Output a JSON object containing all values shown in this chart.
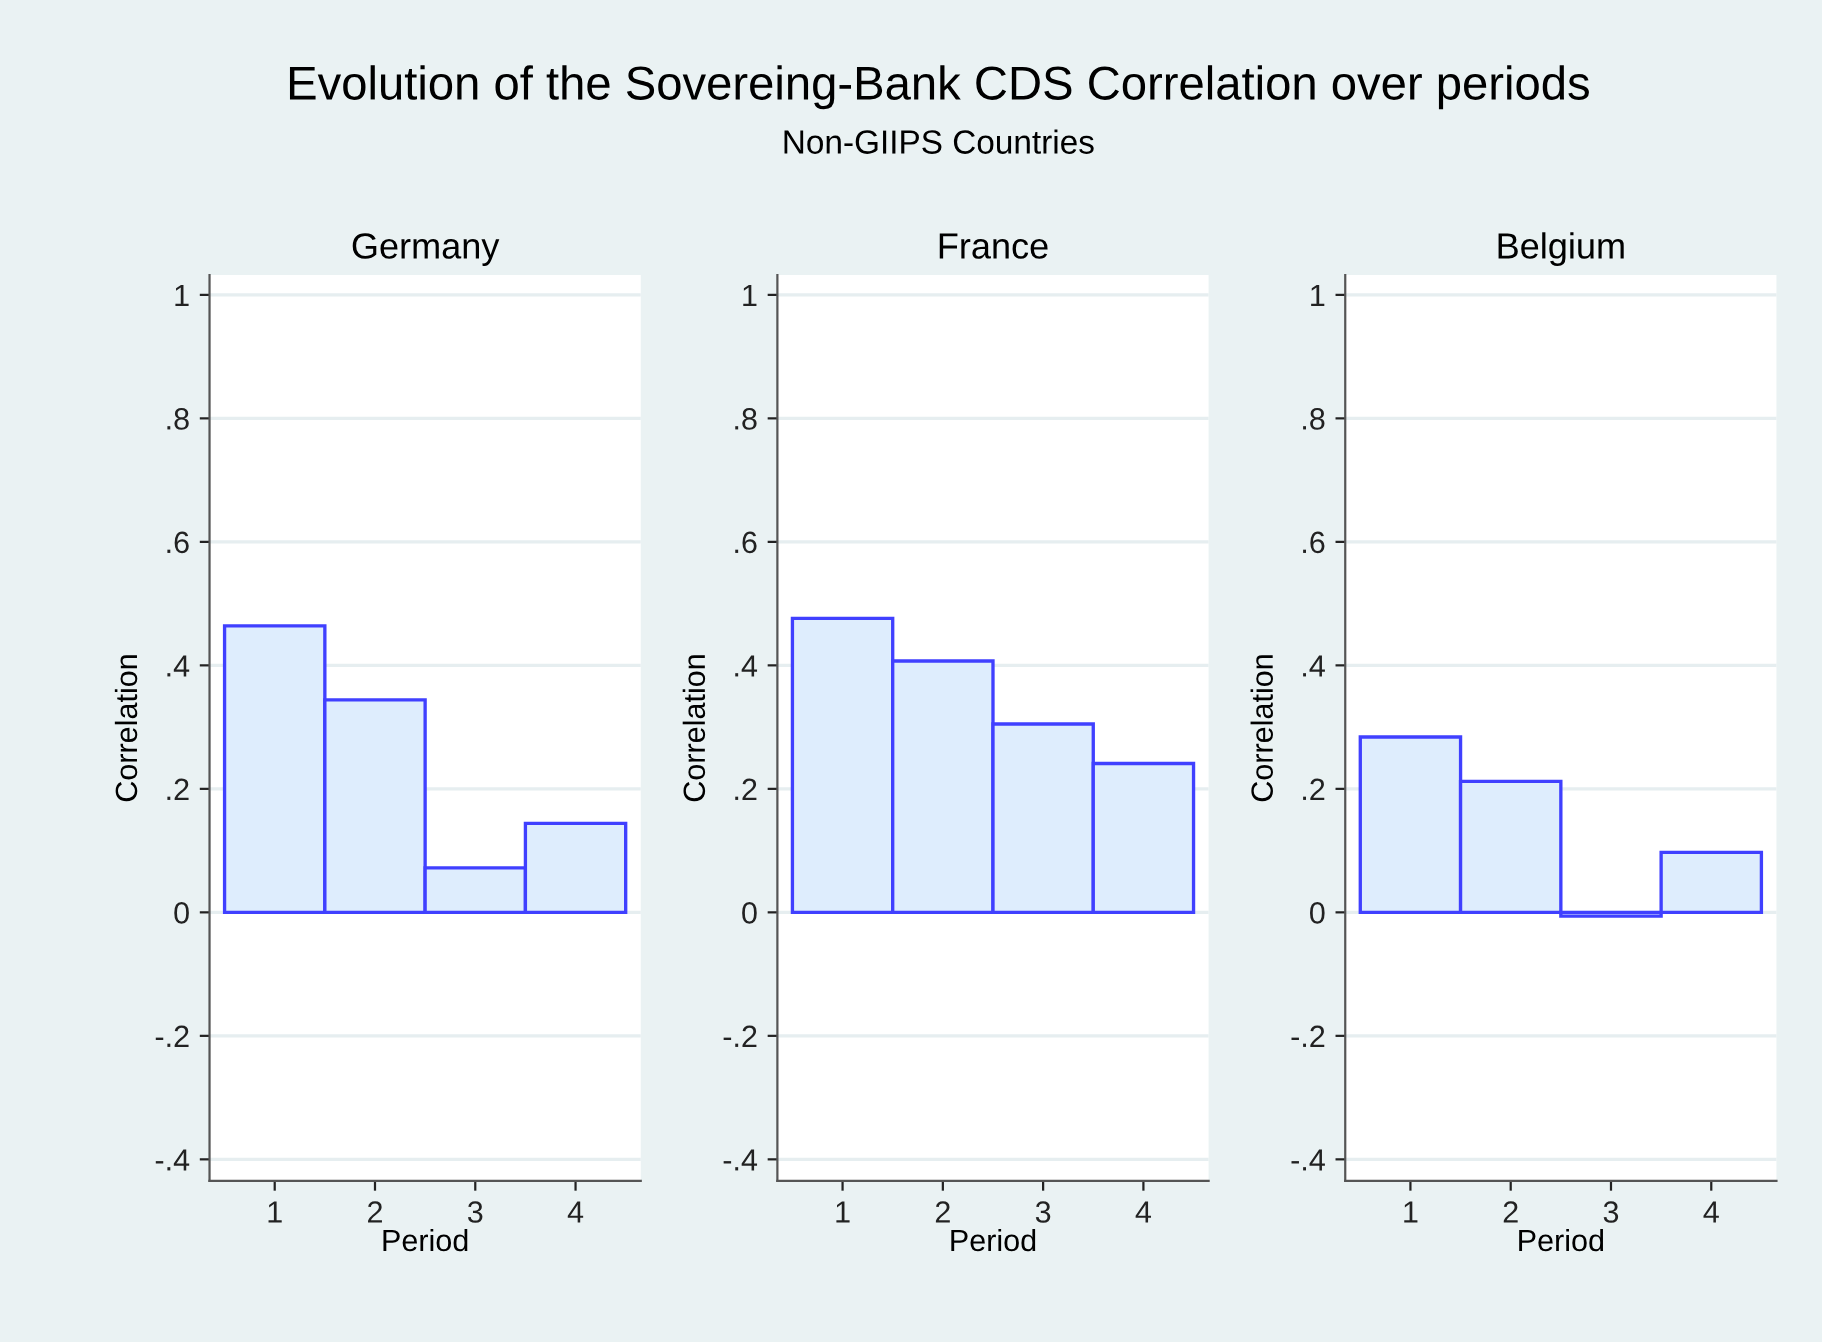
{
  "chart_data": [
    {
      "type": "bar",
      "title": "Germany",
      "xlabel": "Period",
      "ylabel": "Correlation",
      "categories": [
        "1",
        "2",
        "3",
        "4"
      ],
      "values": [
        0.464,
        0.344,
        0.072,
        0.144
      ],
      "color": "#deedfd",
      "ylim": [
        -0.435,
        1.032
      ],
      "yticks": [
        {
          "value": -0.4,
          "label": "-.4"
        },
        {
          "value": -0.2,
          "label": "-.2"
        },
        0,
        {
          "value": 0.2,
          "label": ".2"
        },
        {
          "value": 0.4,
          "label": ".4"
        },
        {
          "value": 0.6,
          "label": ".6"
        },
        {
          "value": 0.8,
          "label": ".8"
        },
        1
      ],
      "grid": "y",
      "annotations": [
        "Evolution of the Sovereing-Bank CDS Correlation over periods",
        "Non-GIIPS Countries"
      ]
    },
    {
      "type": "bar",
      "title": "France",
      "xlabel": "Period",
      "ylabel": "Correlation",
      "categories": [
        "1",
        "2",
        "3",
        "4"
      ],
      "values": [
        0.476,
        0.407,
        0.305,
        0.241
      ],
      "color": "#deedfd",
      "ylim": [
        -0.435,
        1.032
      ],
      "yticks": [
        {
          "value": -0.4,
          "label": "-.4"
        },
        {
          "value": -0.2,
          "label": "-.2"
        },
        0,
        {
          "value": 0.2,
          "label": ".2"
        },
        {
          "value": 0.4,
          "label": ".4"
        },
        {
          "value": 0.6,
          "label": ".6"
        },
        {
          "value": 0.8,
          "label": ".8"
        },
        1
      ],
      "grid": "y"
    },
    {
      "type": "bar",
      "title": "Belgium",
      "xlabel": "Period",
      "ylabel": "Correlation",
      "categories": [
        "1",
        "2",
        "3",
        "4"
      ],
      "values": [
        0.284,
        0.212,
        -0.006,
        0.097
      ],
      "color": "#deedfd",
      "ylim": [
        -0.435,
        1.032
      ],
      "yticks": [
        {
          "value": -0.4,
          "label": "-.4"
        },
        {
          "value": -0.2,
          "label": "-.2"
        },
        0,
        {
          "value": 0.2,
          "label": ".2"
        },
        {
          "value": 0.4,
          "label": ".4"
        },
        {
          "value": 0.6,
          "label": ".6"
        },
        {
          "value": 0.8,
          "label": ".8"
        },
        1
      ],
      "grid": "y"
    }
  ]
}
